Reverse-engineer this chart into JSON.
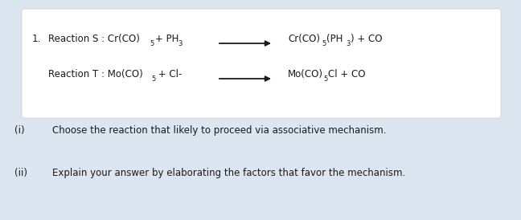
{
  "background_color": "#dce6f0",
  "box_color": "#ffffff",
  "text_color": "#1a1a1a",
  "fig_width": 6.48,
  "fig_height": 2.74,
  "dpi": 100,
  "font_size_reaction": 8.5,
  "font_size_question": 8.5,
  "font_size_sub": 6,
  "question_i_label": "(i)",
  "question_i_text": "Choose the reaction that likely to proceed via associative mechanism.",
  "question_ii_label": "(ii)",
  "question_ii_text": "Explain your answer by elaborating the factors that favor the mechanism."
}
